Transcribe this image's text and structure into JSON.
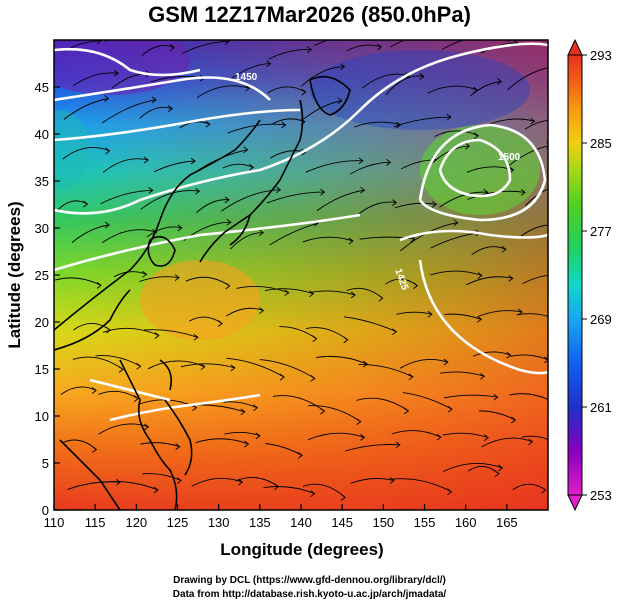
{
  "title": "GSM 12Z17Mar2026 (850.0hPa)",
  "map": {
    "xlabel": "Longitude (degrees)",
    "ylabel": "Latitude  (degrees)",
    "xticks": [
      "110",
      "115",
      "120",
      "125",
      "130",
      "135",
      "140",
      "145",
      "150",
      "155",
      "160",
      "165"
    ],
    "yticks": [
      "0",
      "5",
      "10",
      "15",
      "20",
      "25",
      "30",
      "35",
      "40",
      "45"
    ],
    "x_range": [
      110,
      170
    ],
    "y_range": [
      0,
      50
    ],
    "contour_labels": [
      "1450",
      "1425",
      "1500"
    ]
  },
  "colorbar": {
    "ticks": [
      "253",
      "261",
      "269",
      "277",
      "285",
      "293"
    ],
    "min": 253,
    "max": 293,
    "colors": [
      "#e020c8",
      "#8800c0",
      "#2030c8",
      "#1060f0",
      "#18a8f0",
      "#10d8c8",
      "#20d060",
      "#50d020",
      "#a8d818",
      "#f0d010",
      "#f8a010",
      "#f06018",
      "#e83020"
    ]
  },
  "credits": {
    "line1": "Drawing by DCL (https://www.gfd-dennou.org/library/dcl/)",
    "line2": "Data from http://database.rish.kyoto-u.ac.jp/arch/jmadata/"
  }
}
